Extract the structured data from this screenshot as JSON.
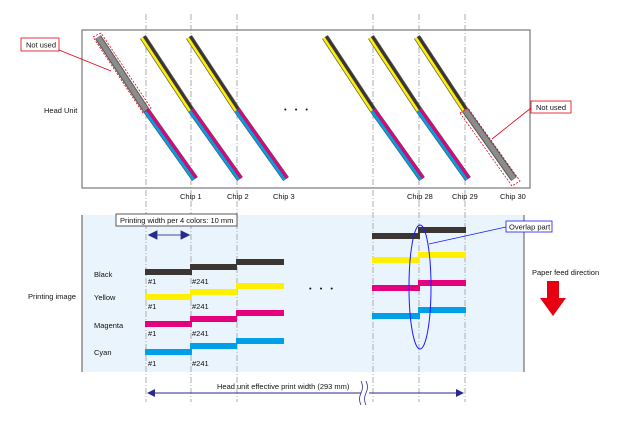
{
  "head_unit": {
    "label": "Head Unit",
    "not_used_left": "Not used",
    "not_used_right": "Not used",
    "chips": [
      "Chip 1",
      "Chip 2",
      "Chip 3",
      "Chip 28",
      "Chip 29",
      "Chip 30"
    ],
    "ellipsis": "• • •"
  },
  "printing_image": {
    "label": "Printing image",
    "width_note": "Printing width per 4 colors: 10 mm",
    "rows": [
      "Black",
      "Yellow",
      "Magenta",
      "Cyan"
    ],
    "nozzle_first": "#1",
    "nozzle_second": "#241",
    "overlap_label": "Overlap part",
    "ellipsis": "• • •",
    "effective_width": "Head unit effective print width (293 mm)"
  },
  "paper_feed": {
    "label": "Paper feed direction"
  },
  "colors": {
    "black": "#3b3533",
    "yellow": "#fff000",
    "magenta": "#e4007f",
    "cyan": "#00a0e9",
    "gray": "#8c8c8c",
    "red": "#e60012",
    "blue": "#1a1aff",
    "navy": "#2a2a8c",
    "panel": "#eaf4fc"
  }
}
